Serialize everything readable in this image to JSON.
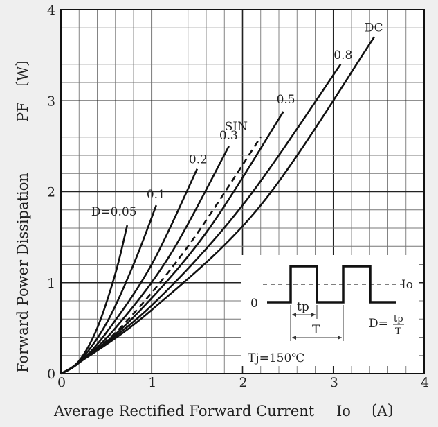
{
  "chart_data": {
    "type": "line",
    "title": "",
    "xlabel": "Average Rectified Forward Current",
    "xlabel_symbol": "Io",
    "xlabel_unit": "〔A〕",
    "ylabel": "Forward Power Dissipation",
    "ylabel_symbol": "PF",
    "ylabel_unit": "〔W〕",
    "xlim": [
      0,
      4
    ],
    "ylim": [
      0,
      4
    ],
    "x_major_ticks": [
      0,
      1,
      2,
      3,
      4
    ],
    "y_major_ticks": [
      0,
      1,
      2,
      3,
      4
    ],
    "x_tick_labels": [
      "0",
      "1",
      "2",
      "3",
      "4"
    ],
    "y_tick_labels": [
      "0",
      "1",
      "2",
      "3",
      "4"
    ],
    "grid": true,
    "grid_minor_step": 0.2,
    "series": [
      {
        "name": "D=0.05",
        "dashed": false,
        "x": [
          0,
          0.2,
          0.4,
          0.6,
          0.73
        ],
        "y": [
          0,
          0.14,
          0.5,
          1.1,
          1.63
        ]
      },
      {
        "name": "0.1",
        "dashed": false,
        "x": [
          0,
          0.2,
          0.5,
          0.8,
          1.05
        ],
        "y": [
          0,
          0.13,
          0.55,
          1.2,
          1.85
        ]
      },
      {
        "name": "0.2",
        "dashed": false,
        "x": [
          0,
          0.2,
          0.5,
          1.0,
          1.5
        ],
        "y": [
          0,
          0.12,
          0.45,
          1.2,
          2.25
        ]
      },
      {
        "name": "0.3",
        "dashed": false,
        "x": [
          0,
          0.2,
          0.6,
          1.2,
          1.85
        ],
        "y": [
          0,
          0.12,
          0.5,
          1.3,
          2.5
        ]
      },
      {
        "name": "SIN",
        "dashed": true,
        "x": [
          0,
          0.2,
          0.7,
          1.4,
          2.2
        ],
        "y": [
          0,
          0.12,
          0.55,
          1.4,
          2.6
        ]
      },
      {
        "name": "0.5",
        "dashed": false,
        "x": [
          0,
          0.2,
          0.8,
          1.6,
          2.45
        ],
        "y": [
          0,
          0.12,
          0.62,
          1.55,
          2.88
        ]
      },
      {
        "name": "0.8",
        "dashed": false,
        "x": [
          0,
          0.2,
          1.0,
          2.0,
          3.08
        ],
        "y": [
          0,
          0.12,
          0.75,
          1.85,
          3.4
        ]
      },
      {
        "name": "DC",
        "dashed": false,
        "x": [
          0,
          0.2,
          1.0,
          2.2,
          3.45
        ],
        "y": [
          0,
          0.12,
          0.7,
          1.85,
          3.7
        ]
      }
    ],
    "annotations": {
      "inset_zero": "0",
      "inset_io": "Io",
      "inset_tp": "tp",
      "inset_T": "T",
      "duty_lhs": "D=",
      "duty_num": "tp",
      "duty_den": "T",
      "tj": "Tj=150℃"
    }
  }
}
